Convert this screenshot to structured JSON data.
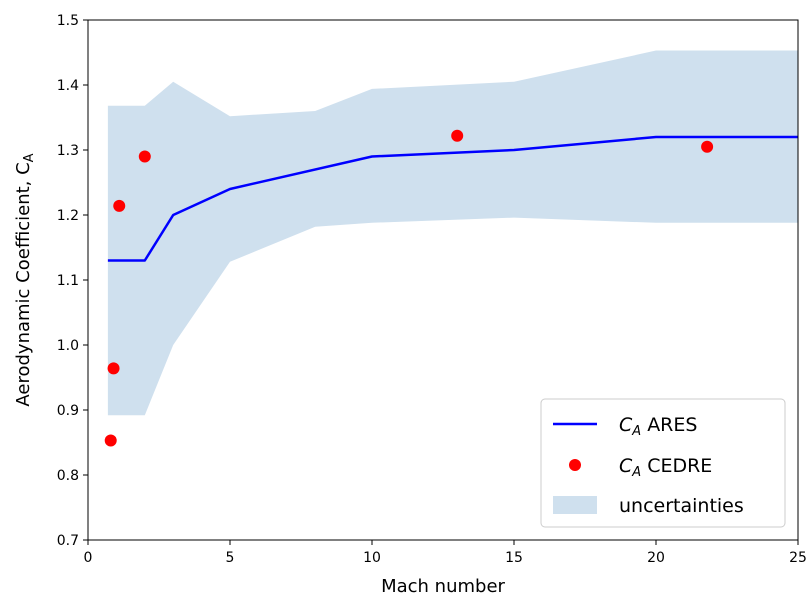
{
  "chart_data": {
    "type": "line",
    "xlabel": "Mach number",
    "ylabel_main": "Aerodynamic Coefficient,  C",
    "ylabel_sub": "A",
    "xlim": [
      0,
      25
    ],
    "ylim": [
      0.7,
      1.5
    ],
    "xticks": [
      0,
      5,
      10,
      15,
      20,
      25
    ],
    "yticks": [
      0.7,
      0.8,
      0.9,
      1.0,
      1.1,
      1.2,
      1.3,
      1.4,
      1.5
    ],
    "grid": false,
    "legend_position": "bottom-right",
    "series": [
      {
        "name": "ARES",
        "name_prefix": "C",
        "name_sub": "A",
        "kind": "line",
        "color": "#0000ff",
        "x": [
          0.7,
          2.0,
          3.0,
          5.0,
          10.0,
          15.0,
          20.0,
          25.0
        ],
        "y": [
          1.13,
          1.13,
          1.2,
          1.24,
          1.29,
          1.3,
          1.32,
          1.32
        ]
      },
      {
        "name": "CEDRE",
        "name_prefix": "C",
        "name_sub": "A",
        "kind": "scatter",
        "color": "#ff0000",
        "x": [
          0.8,
          0.9,
          1.1,
          2.0,
          13.0,
          21.8
        ],
        "y": [
          0.853,
          0.964,
          1.214,
          1.29,
          1.322,
          1.305
        ]
      },
      {
        "name": "uncertainties",
        "kind": "band",
        "color": "#cfe0ee",
        "x": [
          0.7,
          2.0,
          3.0,
          5.0,
          8.0,
          10.0,
          15.0,
          20.0,
          25.0
        ],
        "upper": [
          1.368,
          1.368,
          1.405,
          1.352,
          1.36,
          1.394,
          1.405,
          1.453,
          1.453
        ],
        "lower": [
          0.892,
          0.892,
          1.0,
          1.128,
          1.182,
          1.188,
          1.196,
          1.188,
          1.188
        ]
      }
    ]
  }
}
